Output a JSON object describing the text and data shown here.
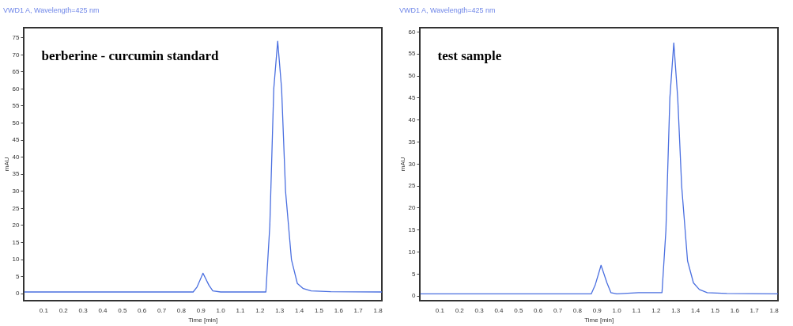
{
  "chart_data": [
    {
      "type": "line",
      "title": "berberine - curcumin standard",
      "subtitle": "VWD1 A, Wavelength=425 nm",
      "xlabel": "Time [min]",
      "ylabel": "mAU",
      "grid": false,
      "legend": false,
      "marker": "none",
      "line_style": "solid",
      "xlim": [
        0,
        1.82
      ],
      "xticks": [
        0.1,
        0.2,
        0.3,
        0.4,
        0.5,
        0.6,
        0.7,
        0.8,
        0.9,
        {
          "value": 1,
          "label": "1.0"
        },
        1.1,
        1.2,
        1.3,
        1.4,
        1.5,
        1.6,
        1.7,
        1.8
      ],
      "ylim": [
        -2,
        78
      ],
      "yticks": [
        0,
        5,
        10,
        15,
        20,
        25,
        30,
        35,
        40,
        45,
        50,
        55,
        60,
        65,
        70,
        75
      ],
      "series": [
        {
          "color": "#4a6fe0",
          "x": [
            0,
            0.86,
            0.88,
            0.91,
            0.94,
            0.96,
            1.0,
            1.23,
            1.25,
            1.27,
            1.29,
            1.31,
            1.33,
            1.36,
            1.39,
            1.42,
            1.46,
            1.56,
            1.82
          ],
          "values": [
            0.5,
            0.5,
            2,
            6,
            2.5,
            0.8,
            0.5,
            0.5,
            20,
            60,
            74,
            60,
            30,
            10,
            3,
            1.5,
            0.8,
            0.6,
            0.5
          ]
        }
      ]
    },
    {
      "type": "line",
      "title": "test sample",
      "subtitle": "VWD1 A, Wavelength=425 nm",
      "xlabel": "Time [min]",
      "ylabel": "mAU",
      "grid": false,
      "legend": false,
      "marker": "none",
      "line_style": "solid",
      "xlim": [
        0,
        1.82
      ],
      "xticks": [
        0.1,
        0.2,
        0.3,
        0.4,
        0.5,
        0.6,
        0.7,
        0.8,
        0.9,
        {
          "value": 1,
          "label": "1.0"
        },
        1.1,
        1.2,
        1.3,
        1.4,
        1.5,
        1.6,
        1.7,
        1.8
      ],
      "ylim": [
        -1,
        61
      ],
      "yticks": [
        0,
        5,
        10,
        15,
        20,
        25,
        30,
        35,
        40,
        45,
        50,
        55,
        60
      ],
      "series": [
        {
          "color": "#4a6fe0",
          "x": [
            0,
            0.87,
            0.89,
            0.92,
            0.95,
            0.97,
            1.0,
            1.11,
            1.21,
            1.23,
            1.25,
            1.27,
            1.29,
            1.31,
            1.33,
            1.36,
            1.39,
            1.42,
            1.46,
            1.56,
            1.82
          ],
          "values": [
            0.5,
            0.5,
            2.5,
            7,
            3,
            0.8,
            0.5,
            0.8,
            0.8,
            0.8,
            15,
            45,
            57.5,
            45,
            25,
            8,
            3,
            1.5,
            0.8,
            0.6,
            0.5
          ]
        }
      ]
    }
  ]
}
